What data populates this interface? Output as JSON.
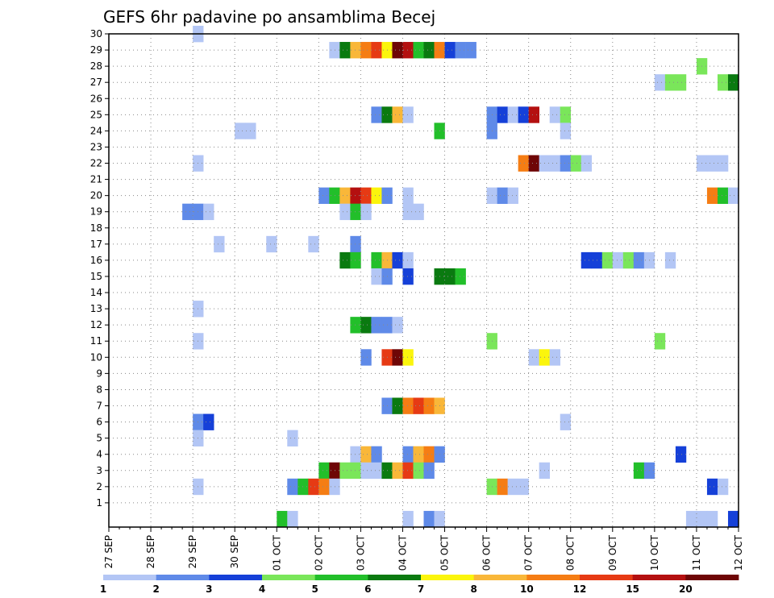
{
  "chart_data": {
    "type": "heatmap",
    "title": "GEFS 6hr padavine po ansamblima Becej",
    "xlabel": "",
    "ylabel": "",
    "x_tick_labels": [
      "27 SEP",
      "28 SEP",
      "29 SEP",
      "30 SEP",
      "01 OCT",
      "02 OCT",
      "03 OCT",
      "04 OCT",
      "05 OCT",
      "06 OCT",
      "07 OCT",
      "08 OCT",
      "09 OCT",
      "10 OCT",
      "11 OCT",
      "12 OCT"
    ],
    "y_tick_labels": [
      "1",
      "2",
      "3",
      "4",
      "5",
      "6",
      "7",
      "8",
      "9",
      "10",
      "11",
      "12",
      "13",
      "14",
      "15",
      "16",
      "17",
      "18",
      "19",
      "20",
      "21",
      "22",
      "23",
      "24",
      "25",
      "26",
      "27",
      "28",
      "29",
      "30"
    ],
    "xlim_steps": [
      0,
      60
    ],
    "ylim": [
      0,
      30
    ],
    "grid": true,
    "legend_position": "bottom",
    "color_scale": {
      "levels": [
        "1",
        "2",
        "3",
        "4",
        "5",
        "6",
        "7",
        "8",
        "10",
        "12",
        "15",
        "20"
      ],
      "colors": [
        "#b3c6f5",
        "#5f8ae8",
        "#1540d8",
        "#7ae65a",
        "#22bf2a",
        "#0a7a10",
        "#fbf50c",
        "#f9b739",
        "#f57d14",
        "#e63a14",
        "#b41010",
        "#6e0606"
      ]
    },
    "cells": [
      [
        8,
        30,
        0
      ],
      [
        21,
        29,
        0
      ],
      [
        22,
        29,
        5
      ],
      [
        23,
        29,
        7
      ],
      [
        24,
        29,
        8
      ],
      [
        25,
        29,
        9
      ],
      [
        26,
        29,
        6
      ],
      [
        27,
        29,
        11
      ],
      [
        28,
        29,
        10
      ],
      [
        29,
        29,
        4
      ],
      [
        30,
        29,
        5
      ],
      [
        31,
        29,
        8
      ],
      [
        32,
        29,
        2
      ],
      [
        33,
        29,
        1
      ],
      [
        34,
        29,
        1
      ],
      [
        56,
        28,
        3
      ],
      [
        52,
        27,
        0
      ],
      [
        53,
        27,
        3
      ],
      [
        54,
        27,
        3
      ],
      [
        58,
        27,
        3
      ],
      [
        59,
        27,
        5
      ],
      [
        25,
        25,
        1
      ],
      [
        26,
        25,
        5
      ],
      [
        27,
        25,
        7
      ],
      [
        28,
        25,
        0
      ],
      [
        36,
        25,
        1
      ],
      [
        37,
        25,
        2
      ],
      [
        38,
        25,
        0
      ],
      [
        39,
        25,
        2
      ],
      [
        40,
        25,
        10
      ],
      [
        42,
        25,
        0
      ],
      [
        43,
        25,
        3
      ],
      [
        12,
        24,
        0
      ],
      [
        13,
        24,
        0
      ],
      [
        31,
        24,
        4
      ],
      [
        36,
        24,
        1
      ],
      [
        43,
        24,
        0
      ],
      [
        8,
        22,
        0
      ],
      [
        39,
        22,
        8
      ],
      [
        40,
        22,
        11
      ],
      [
        41,
        22,
        0
      ],
      [
        42,
        22,
        0
      ],
      [
        43,
        22,
        1
      ],
      [
        44,
        22,
        3
      ],
      [
        45,
        22,
        0
      ],
      [
        56,
        22,
        0
      ],
      [
        57,
        22,
        0
      ],
      [
        58,
        22,
        0
      ],
      [
        20,
        20,
        1
      ],
      [
        21,
        20,
        4
      ],
      [
        22,
        20,
        7
      ],
      [
        23,
        20,
        10
      ],
      [
        24,
        20,
        9
      ],
      [
        25,
        20,
        6
      ],
      [
        26,
        20,
        1
      ],
      [
        28,
        20,
        0
      ],
      [
        36,
        20,
        0
      ],
      [
        37,
        20,
        1
      ],
      [
        38,
        20,
        0
      ],
      [
        57,
        20,
        8
      ],
      [
        58,
        20,
        4
      ],
      [
        59,
        20,
        0
      ],
      [
        7,
        19,
        1
      ],
      [
        8,
        19,
        1
      ],
      [
        9,
        19,
        0
      ],
      [
        22,
        19,
        0
      ],
      [
        23,
        19,
        4
      ],
      [
        24,
        19,
        0
      ],
      [
        28,
        19,
        0
      ],
      [
        29,
        19,
        0
      ],
      [
        10,
        17,
        0
      ],
      [
        15,
        17,
        0
      ],
      [
        19,
        17,
        0
      ],
      [
        23,
        17,
        1
      ],
      [
        22,
        16,
        5
      ],
      [
        23,
        16,
        4
      ],
      [
        25,
        16,
        4
      ],
      [
        26,
        16,
        7
      ],
      [
        27,
        16,
        2
      ],
      [
        28,
        16,
        0
      ],
      [
        45,
        16,
        2
      ],
      [
        46,
        16,
        2
      ],
      [
        47,
        16,
        3
      ],
      [
        48,
        16,
        0
      ],
      [
        49,
        16,
        3
      ],
      [
        50,
        16,
        1
      ],
      [
        51,
        16,
        0
      ],
      [
        53,
        16,
        0
      ],
      [
        25,
        15,
        0
      ],
      [
        26,
        15,
        1
      ],
      [
        28,
        15,
        2
      ],
      [
        31,
        15,
        5
      ],
      [
        32,
        15,
        5
      ],
      [
        33,
        15,
        4
      ],
      [
        8,
        13,
        0
      ],
      [
        23,
        12,
        4
      ],
      [
        24,
        12,
        5
      ],
      [
        25,
        12,
        1
      ],
      [
        26,
        12,
        1
      ],
      [
        27,
        12,
        0
      ],
      [
        8,
        11,
        0
      ],
      [
        36,
        11,
        3
      ],
      [
        52,
        11,
        3
      ],
      [
        24,
        10,
        1
      ],
      [
        26,
        10,
        9
      ],
      [
        27,
        10,
        11
      ],
      [
        28,
        10,
        6
      ],
      [
        40,
        10,
        0
      ],
      [
        41,
        10,
        6
      ],
      [
        42,
        10,
        0
      ],
      [
        26,
        7,
        1
      ],
      [
        27,
        7,
        5
      ],
      [
        28,
        7,
        8
      ],
      [
        29,
        7,
        9
      ],
      [
        30,
        7,
        8
      ],
      [
        31,
        7,
        7
      ],
      [
        8,
        6,
        1
      ],
      [
        9,
        6,
        2
      ],
      [
        43,
        6,
        0
      ],
      [
        8,
        5,
        0
      ],
      [
        17,
        5,
        0
      ],
      [
        23,
        4,
        0
      ],
      [
        24,
        4,
        7
      ],
      [
        25,
        4,
        1
      ],
      [
        28,
        4,
        1
      ],
      [
        29,
        4,
        7
      ],
      [
        30,
        4,
        8
      ],
      [
        31,
        4,
        1
      ],
      [
        54,
        4,
        2
      ],
      [
        20,
        3,
        4
      ],
      [
        21,
        3,
        11
      ],
      [
        22,
        3,
        3
      ],
      [
        23,
        3,
        3
      ],
      [
        24,
        3,
        0
      ],
      [
        25,
        3,
        0
      ],
      [
        26,
        3,
        5
      ],
      [
        27,
        3,
        7
      ],
      [
        28,
        3,
        9
      ],
      [
        29,
        3,
        3
      ],
      [
        30,
        3,
        1
      ],
      [
        41,
        3,
        0
      ],
      [
        50,
        3,
        4
      ],
      [
        51,
        3,
        1
      ],
      [
        8,
        2,
        0
      ],
      [
        17,
        2,
        1
      ],
      [
        18,
        2,
        4
      ],
      [
        19,
        2,
        9
      ],
      [
        20,
        2,
        8
      ],
      [
        21,
        2,
        0
      ],
      [
        36,
        2,
        3
      ],
      [
        37,
        2,
        8
      ],
      [
        38,
        2,
        0
      ],
      [
        39,
        2,
        0
      ],
      [
        57,
        2,
        2
      ],
      [
        58,
        2,
        0
      ],
      [
        16,
        0,
        4
      ],
      [
        17,
        0,
        0
      ],
      [
        28,
        0,
        0
      ],
      [
        30,
        0,
        1
      ],
      [
        31,
        0,
        0
      ],
      [
        55,
        0,
        0
      ],
      [
        56,
        0,
        0
      ],
      [
        57,
        0,
        0
      ],
      [
        59,
        0,
        2
      ]
    ]
  }
}
